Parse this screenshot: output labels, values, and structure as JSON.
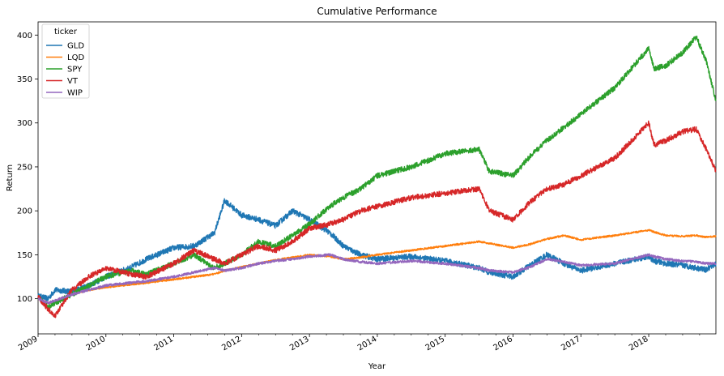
{
  "chart_data": {
    "type": "line",
    "title": "Cumulative Performance",
    "xlabel": "Year",
    "ylabel": "Return",
    "xlim": [
      2009.0,
      2018.99
    ],
    "ylim": [
      60,
      415
    ],
    "x_ticks": [
      "2009",
      "2010",
      "2011",
      "2012",
      "2013",
      "2014",
      "2015",
      "2016",
      "2017",
      "2018"
    ],
    "y_ticks": [
      100,
      150,
      200,
      250,
      300,
      350,
      400
    ],
    "grid": false,
    "legend": {
      "title": "ticker",
      "placement": "top-left"
    },
    "x": [
      2009.0,
      2009.15,
      2009.25,
      2009.5,
      2009.75,
      2010.0,
      2010.35,
      2010.6,
      2011.0,
      2011.3,
      2011.6,
      2011.75,
      2012.0,
      2012.25,
      2012.5,
      2012.75,
      2013.0,
      2013.3,
      2013.5,
      2013.75,
      2014.0,
      2014.5,
      2015.0,
      2015.5,
      2015.65,
      2016.0,
      2016.25,
      2016.5,
      2016.75,
      2017.0,
      2017.5,
      2018.0,
      2018.08,
      2018.25,
      2018.5,
      2018.7,
      2018.85,
      2018.99
    ],
    "series": [
      {
        "name": "GLD",
        "color": "#1f77b4",
        "values": [
          103,
          100,
          110,
          108,
          115,
          125,
          135,
          145,
          158,
          160,
          175,
          212,
          195,
          190,
          183,
          200,
          190,
          175,
          160,
          150,
          145,
          148,
          143,
          135,
          130,
          125,
          138,
          150,
          140,
          132,
          140,
          148,
          143,
          140,
          138,
          135,
          133,
          140
        ]
      },
      {
        "name": "LQD",
        "color": "#ff7f0e",
        "values": [
          100,
          95,
          97,
          105,
          110,
          113,
          116,
          118,
          122,
          125,
          128,
          132,
          136,
          140,
          144,
          147,
          150,
          148,
          145,
          147,
          150,
          155,
          160,
          165,
          163,
          158,
          162,
          168,
          172,
          167,
          172,
          178,
          176,
          172,
          171,
          172,
          170,
          171
        ]
      },
      {
        "name": "SPY",
        "color": "#2ca02c",
        "values": [
          102,
          90,
          95,
          105,
          115,
          125,
          132,
          128,
          140,
          150,
          135,
          140,
          150,
          165,
          160,
          172,
          185,
          205,
          215,
          225,
          240,
          250,
          265,
          270,
          245,
          240,
          262,
          280,
          295,
          310,
          340,
          385,
          362,
          365,
          380,
          398,
          370,
          325
        ]
      },
      {
        "name": "VT",
        "color": "#d62728",
        "values": [
          102,
          88,
          80,
          110,
          125,
          135,
          128,
          125,
          140,
          155,
          145,
          140,
          150,
          160,
          155,
          165,
          180,
          185,
          190,
          200,
          205,
          215,
          220,
          225,
          200,
          190,
          210,
          225,
          230,
          240,
          260,
          300,
          275,
          280,
          290,
          293,
          270,
          245
        ]
      },
      {
        "name": "WIP",
        "color": "#9467bd",
        "values": [
          100,
          95,
          98,
          105,
          110,
          115,
          118,
          120,
          125,
          130,
          135,
          132,
          135,
          140,
          143,
          145,
          148,
          150,
          145,
          142,
          140,
          143,
          140,
          135,
          132,
          130,
          136,
          145,
          142,
          138,
          140,
          150,
          148,
          145,
          143,
          142,
          140,
          140
        ]
      }
    ]
  }
}
